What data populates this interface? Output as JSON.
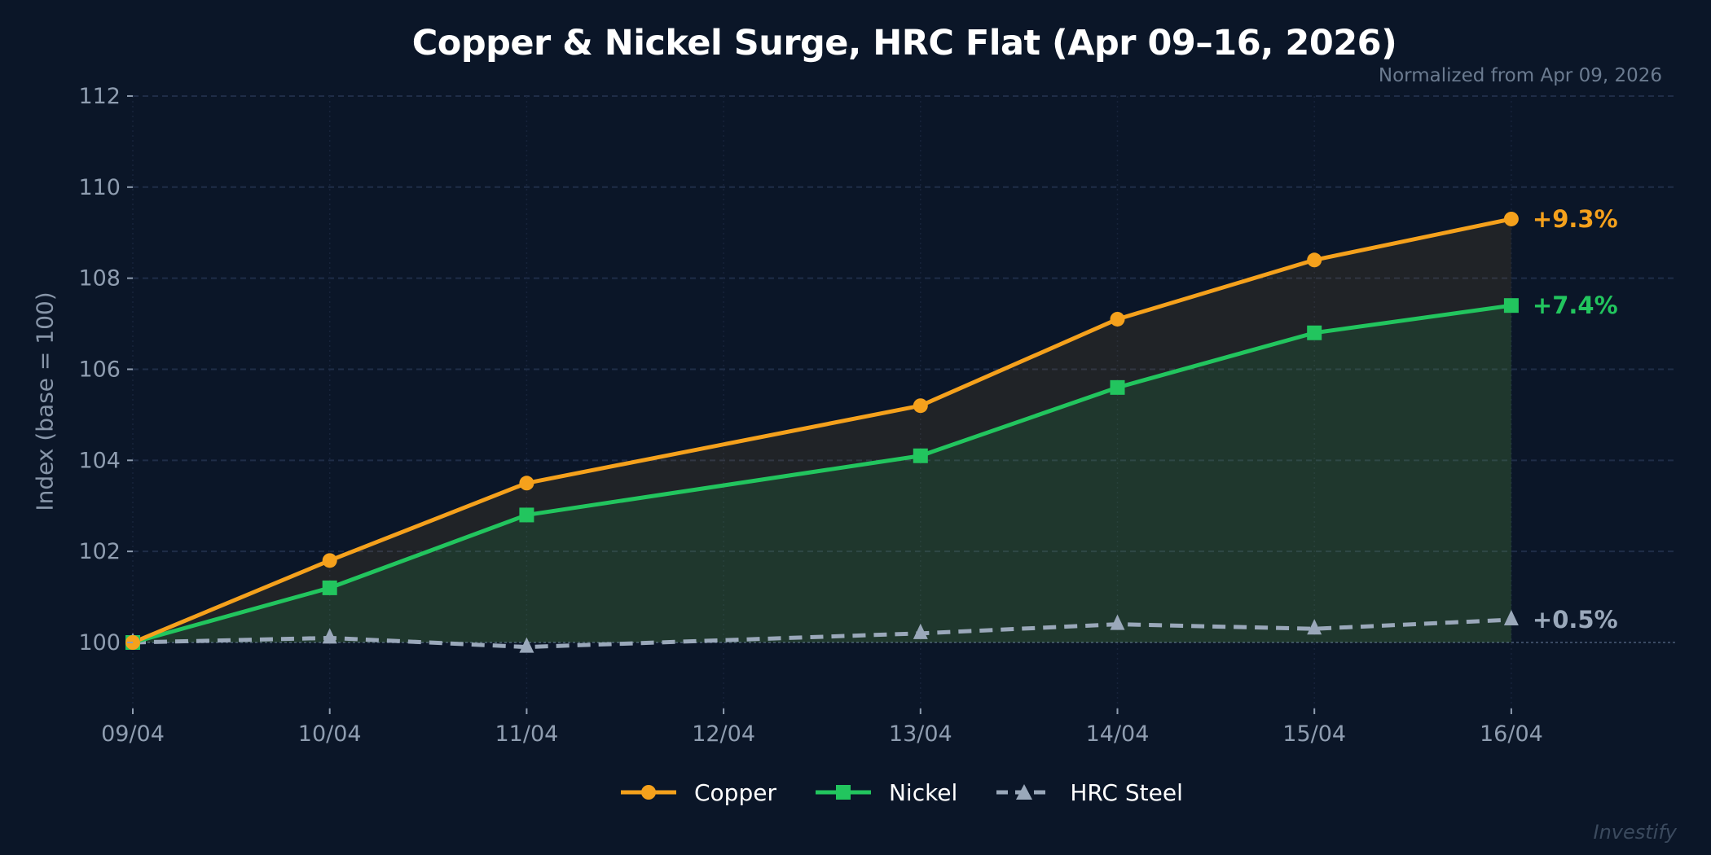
{
  "title": "Copper & Nickel Surge, HRC Flat (Apr 09–16, 2026)",
  "subtitle": "Normalized from Apr 09, 2026",
  "watermark": "Investify",
  "colors": {
    "background": "#0b1628",
    "copper": "#f5a11c",
    "nickel": "#22c55e",
    "hrc": "#9aa8ba",
    "grid": "#1f2d47"
  },
  "legend": [
    {
      "label": "Copper",
      "marker": "circle",
      "color": "#f5a11c",
      "dash": false
    },
    {
      "label": "Nickel",
      "marker": "square",
      "color": "#22c55e",
      "dash": false
    },
    {
      "label": "HRC Steel",
      "marker": "triangle",
      "color": "#9aa8ba",
      "dash": true
    }
  ],
  "end_labels": [
    "+9.3%",
    "+7.4%",
    "+0.5%"
  ],
  "chart_data": {
    "type": "line",
    "title": "Copper & Nickel Surge, HRC Flat (Apr 09–16, 2026)",
    "subtitle": "Normalized from Apr 09, 2026",
    "xlabel": "",
    "ylabel": "Index (base = 100)",
    "x_ticks": [
      "09/04",
      "10/04",
      "11/04",
      "12/04",
      "13/04",
      "14/04",
      "15/04",
      "16/04"
    ],
    "x": [
      "09/04",
      "10/04",
      "11/04",
      "13/04",
      "14/04",
      "15/04",
      "16/04"
    ],
    "x_index": [
      0,
      1,
      2,
      4,
      5,
      6,
      7
    ],
    "y_ticks": [
      100,
      102,
      104,
      106,
      108,
      110,
      112
    ],
    "ylim": [
      98.55,
      112
    ],
    "grid": true,
    "legend_position": "bottom-center",
    "series": [
      {
        "name": "Copper",
        "values": [
          100,
          101.8,
          103.5,
          105.2,
          107.1,
          108.4,
          109.3
        ],
        "color": "#f5a11c",
        "marker": "circle",
        "style": "solid",
        "fill": true,
        "end_label": "+9.3%"
      },
      {
        "name": "Nickel",
        "values": [
          100,
          101.2,
          102.8,
          104.1,
          105.6,
          106.8,
          107.4
        ],
        "color": "#22c55e",
        "marker": "square",
        "style": "solid",
        "fill": true,
        "end_label": "+7.4%"
      },
      {
        "name": "HRC Steel",
        "values": [
          100,
          100.1,
          99.9,
          100.2,
          100.4,
          100.3,
          100.5
        ],
        "color": "#9aa8ba",
        "marker": "triangle",
        "style": "dashed",
        "fill": false,
        "end_label": "+0.5%"
      }
    ],
    "annotations": [
      "Normalized from Apr 09, 2026",
      "+9.3%",
      "+7.4%",
      "+0.5%"
    ]
  }
}
